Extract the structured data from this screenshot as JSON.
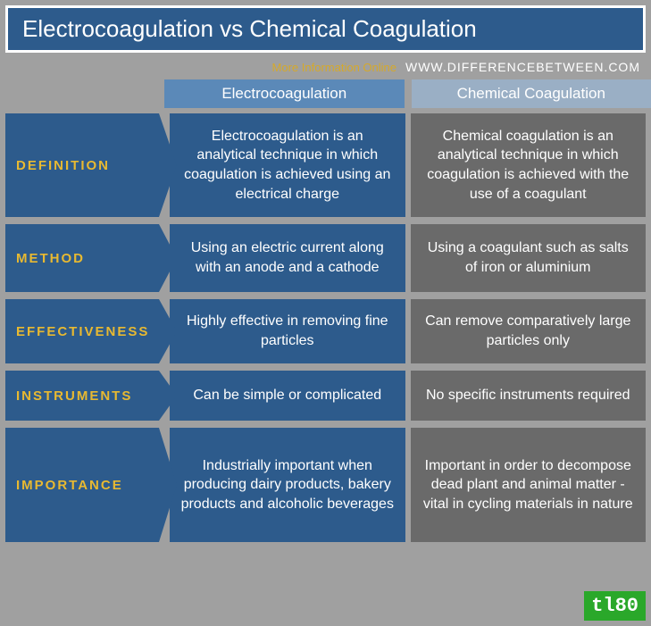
{
  "header": {
    "title": "Electrocoagulation vs Chemical Coagulation",
    "more_info": "More Information Online",
    "url": "WWW.DIFFERENCEBETWEEN.COM"
  },
  "columns": {
    "left": "Electrocoagulation",
    "right": "Chemical Coagulation"
  },
  "rows": [
    {
      "label": "DEFINITION",
      "left": "Electrocoagulation is an analytical technique in which coagulation is achieved using an electrical charge",
      "right": "Chemical coagulation is an analytical technique in which coagulation is achieved with the use of a coagulant"
    },
    {
      "label": "METHOD",
      "left": "Using an electric current along with an anode and a cathode",
      "right": "Using a coagulant such as salts of iron or aluminium"
    },
    {
      "label": "EFFECTIVENESS",
      "left": "Highly effective in removing fine particles",
      "right": "Can remove comparatively large particles only"
    },
    {
      "label": "INSTRUMENTS",
      "left": "Can be simple or complicated",
      "right": "No specific instruments required"
    },
    {
      "label": "IMPORTANCE",
      "left": "Industrially important when producing dairy products, bakery products and alcoholic beverages",
      "right": "Important in order to decompose dead plant and animal matter - vital in cycling materials in nature"
    }
  ],
  "watermark": "tl80",
  "colors": {
    "header_bg": "#2d5b8c",
    "accent": "#e8b931",
    "cell_right_bg": "#6a6a6a",
    "page_bg": "#a0a0a0",
    "watermark_bg": "#2aa82a"
  }
}
